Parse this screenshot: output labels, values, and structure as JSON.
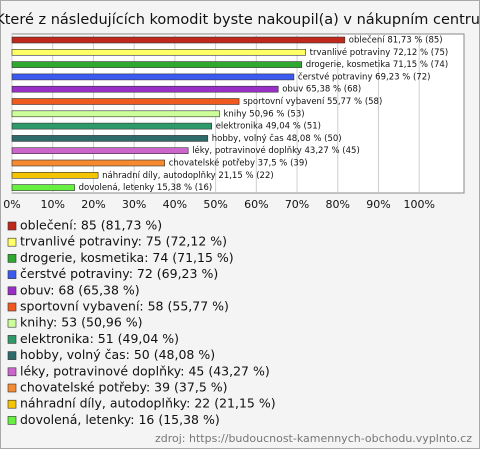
{
  "chart_data": {
    "type": "hbar",
    "title": "Které z následujících komodit byste nakoupil(a) v nákupním centru:",
    "values": [
      81.73,
      72.12,
      71.15,
      69.23,
      65.38,
      55.77,
      50.96,
      49.04,
      48.08,
      43.27,
      37.5,
      21.15,
      15.38
    ],
    "value_labels": [
      "oblečení 81,73 % (85)",
      "trvanlivé potraviny 72,12 % (75)",
      "drogerie, kosmetika 71,15 % (74)",
      "čerstvé potraviny 69,23 % (72)",
      "obuv 65,38 % (68)",
      "sportovní vybavení 55,77 % (58)",
      "knihy 50,96 % (53)",
      "elektronika 49,04 % (51)",
      "hobby, volný čas 48,08 % (50)",
      "léky, potravinové doplňky 43,27 % (45)",
      "chovatelské potřeby 37,5 % (39)",
      "náhradní díly, autodoplňky 21,15 % (22)",
      "dovolená, letenky 15,38 % (16)"
    ],
    "legend": [
      "oblečení: 85 (81,73 %)",
      "trvanlivé potraviny: 75 (72,12 %)",
      "drogerie, kosmetika: 74 (71,15 %)",
      "čerstvé potraviny: 72 (69,23 %)",
      "obuv: 68 (65,38 %)",
      "sportovní vybavení: 58 (55,77 %)",
      "knihy: 53 (50,96 %)",
      "elektronika: 51 (49,04 %)",
      "hobby, volný čas: 50 (48,08 %)",
      "léky, potravinové doplňky: 45 (43,27 %)",
      "chovatelské potřeby: 39 (37,5 %)",
      "náhradní díly, autodoplňky: 22 (21,15 %)",
      "dovolená, letenky: 16 (15,38 %)"
    ],
    "colors": [
      "#c0281c",
      "#ffff66",
      "#2ea82e",
      "#3b5bf0",
      "#9a2fc8",
      "#f05a1e",
      "#ccff99",
      "#2e9a6a",
      "#2f6a6a",
      "#cc66cc",
      "#f58a30",
      "#f5c400",
      "#66f040"
    ],
    "xlim": [
      0,
      111
    ],
    "xticks": [
      {
        "value": 0,
        "label": "0%"
      },
      {
        "value": 10,
        "label": "10%"
      },
      {
        "value": 20,
        "label": "20%"
      },
      {
        "value": 30,
        "label": "30%"
      },
      {
        "value": 40,
        "label": "40%"
      },
      {
        "value": 50,
        "label": "50%"
      },
      {
        "value": 60,
        "label": "60%"
      },
      {
        "value": 70,
        "label": "70%"
      },
      {
        "value": 80,
        "label": "80%"
      },
      {
        "value": 90,
        "label": "90%"
      },
      {
        "value": 100,
        "label": "100%"
      }
    ],
    "grid": true,
    "source": "zdroj: https://budoucnost-kamennych-obchodu.vyplnto.cz"
  }
}
